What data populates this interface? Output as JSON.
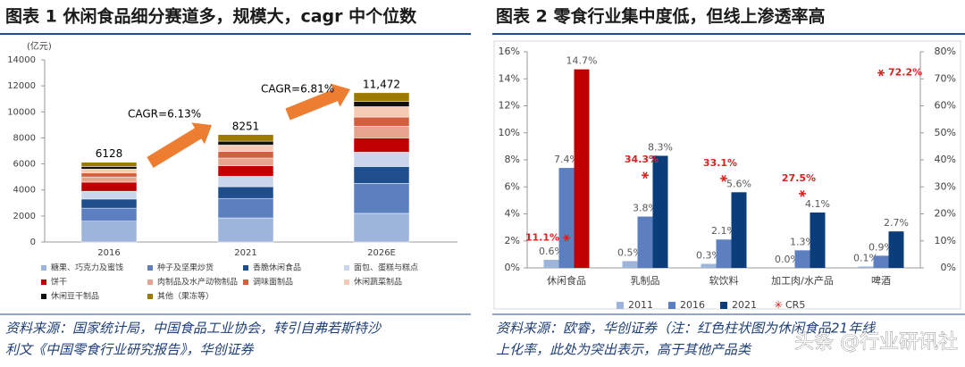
{
  "chart_data": [
    {
      "type": "stacked_bar",
      "title": "图表 1  休闲食品细分赛道多，规模大，cagr 中个位数",
      "ylabel": "(亿元)",
      "categories": [
        "2016",
        "2021",
        "2026E"
      ],
      "ylim": [
        0,
        14000
      ],
      "yticks": [
        0,
        2000,
        4000,
        6000,
        8000,
        10000,
        12000,
        14000
      ],
      "series": [
        {
          "name": "糖果、巧克力及蜜饯",
          "color": "#9db4db",
          "values": [
            1600,
            1850,
            2200
          ]
        },
        {
          "name": "种子及坚果炒货",
          "color": "#5b7fbf",
          "values": [
            1000,
            1500,
            2300
          ]
        },
        {
          "name": "香脆休闲食品",
          "color": "#1f4e8c",
          "values": [
            700,
            900,
            1300
          ]
        },
        {
          "name": "面包、蛋糕与糕点",
          "color": "#c9d5ec",
          "values": [
            600,
            800,
            1100
          ]
        },
        {
          "name": "饼干",
          "color": "#c00000",
          "values": [
            700,
            800,
            1100
          ]
        },
        {
          "name": "肉制品及水产动物制品",
          "color": "#e8a38c",
          "values": [
            400,
            600,
            900
          ]
        },
        {
          "name": "调味面制品",
          "color": "#d2603f",
          "values": [
            300,
            500,
            700
          ]
        },
        {
          "name": "休闲蔬菜制品",
          "color": "#f5cbb6",
          "values": [
            300,
            500,
            800
          ]
        },
        {
          "name": "休闲豆干制品",
          "color": "#111111",
          "values": [
            200,
            300,
            400
          ]
        },
        {
          "name": "其他（果冻等）",
          "color": "#9c7a00",
          "values": [
            328,
            501,
            672
          ]
        }
      ],
      "totals": {
        "values": [
          6128,
          8251,
          11472
        ],
        "value_labels": [
          "6128",
          "8251",
          "11,472"
        ]
      },
      "annotations": [
        "CAGR=6.13%",
        "CAGR=6.81%"
      ],
      "source": [
        "资料来源：国家统计局，中国食品工业协会，转引自弗若斯特沙",
        "利文《中国零食行业研究报告》，华创证券"
      ]
    },
    {
      "type": "grouped_bar",
      "title": "图表 2  零食行业集中度低，但线上渗透率高",
      "categories": [
        "休闲食品",
        "乳制品",
        "软饮料",
        "加工肉/水产品",
        "啤酒"
      ],
      "ylim": [
        0,
        16
      ],
      "yticks": [
        {
          "value": 0,
          "label": "0%"
        },
        {
          "value": 2,
          "label": "2%"
        },
        {
          "value": 4,
          "label": "4%"
        },
        {
          "value": 6,
          "label": "6%"
        },
        {
          "value": 8,
          "label": "8%"
        },
        {
          "value": 10,
          "label": "10%"
        },
        {
          "value": 12,
          "label": "12%"
        },
        {
          "value": 14,
          "label": "14%"
        },
        {
          "value": 16,
          "label": "16%"
        }
      ],
      "y2lim": [
        0,
        80
      ],
      "y2ticks": [
        {
          "value": 0,
          "label": "0%"
        },
        {
          "value": 10,
          "label": "10%"
        },
        {
          "value": 20,
          "label": "20%"
        },
        {
          "value": 30,
          "label": "30%"
        },
        {
          "value": 40,
          "label": "40%"
        },
        {
          "value": 50,
          "label": "50%"
        },
        {
          "value": 60,
          "label": "60%"
        },
        {
          "value": 70,
          "label": "70%"
        },
        {
          "value": 80,
          "label": "80%"
        }
      ],
      "series": [
        {
          "name": "2011",
          "color": "#9db4db",
          "values": [
            0.6,
            0.5,
            0.3,
            0.0,
            0.1
          ],
          "value_labels": [
            "0.6%",
            "0.5%",
            "0.3%",
            "0.0%",
            "0.1%"
          ]
        },
        {
          "name": "2016",
          "color": "#5b7fbf",
          "values": [
            7.4,
            3.8,
            2.1,
            1.3,
            0.9
          ],
          "value_labels": [
            "7.4%",
            "3.8%",
            "2.1%",
            "1.3%",
            "0.9%"
          ]
        },
        {
          "name": "2021",
          "color": "#0b3d7a",
          "colors": [
            "#c00000",
            "#0b3d7a",
            "#0b3d7a",
            "#0b3d7a",
            "#0b3d7a"
          ],
          "values": [
            14.7,
            8.3,
            5.6,
            4.1,
            2.7
          ],
          "value_labels": [
            "14.7%",
            "8.3%",
            "5.6%",
            "4.1%",
            "2.7%"
          ]
        },
        {
          "name": "CR5",
          "color": "#e02020",
          "axis": "y2",
          "marker": "asterisk",
          "values": [
            11.1,
            34.3,
            33.1,
            27.5,
            72.2
          ],
          "value_labels": [
            "11.1%",
            "34.3%",
            "33.1%",
            "27.5%",
            "72.2%"
          ]
        }
      ],
      "source": [
        "资料来源：欧睿，华创证券（注：红色柱状图为休闲食品21年线",
        "上化率，此处为突出表示，高于其他产品类"
      ]
    }
  ],
  "watermark": "头条 @行业研讯社"
}
